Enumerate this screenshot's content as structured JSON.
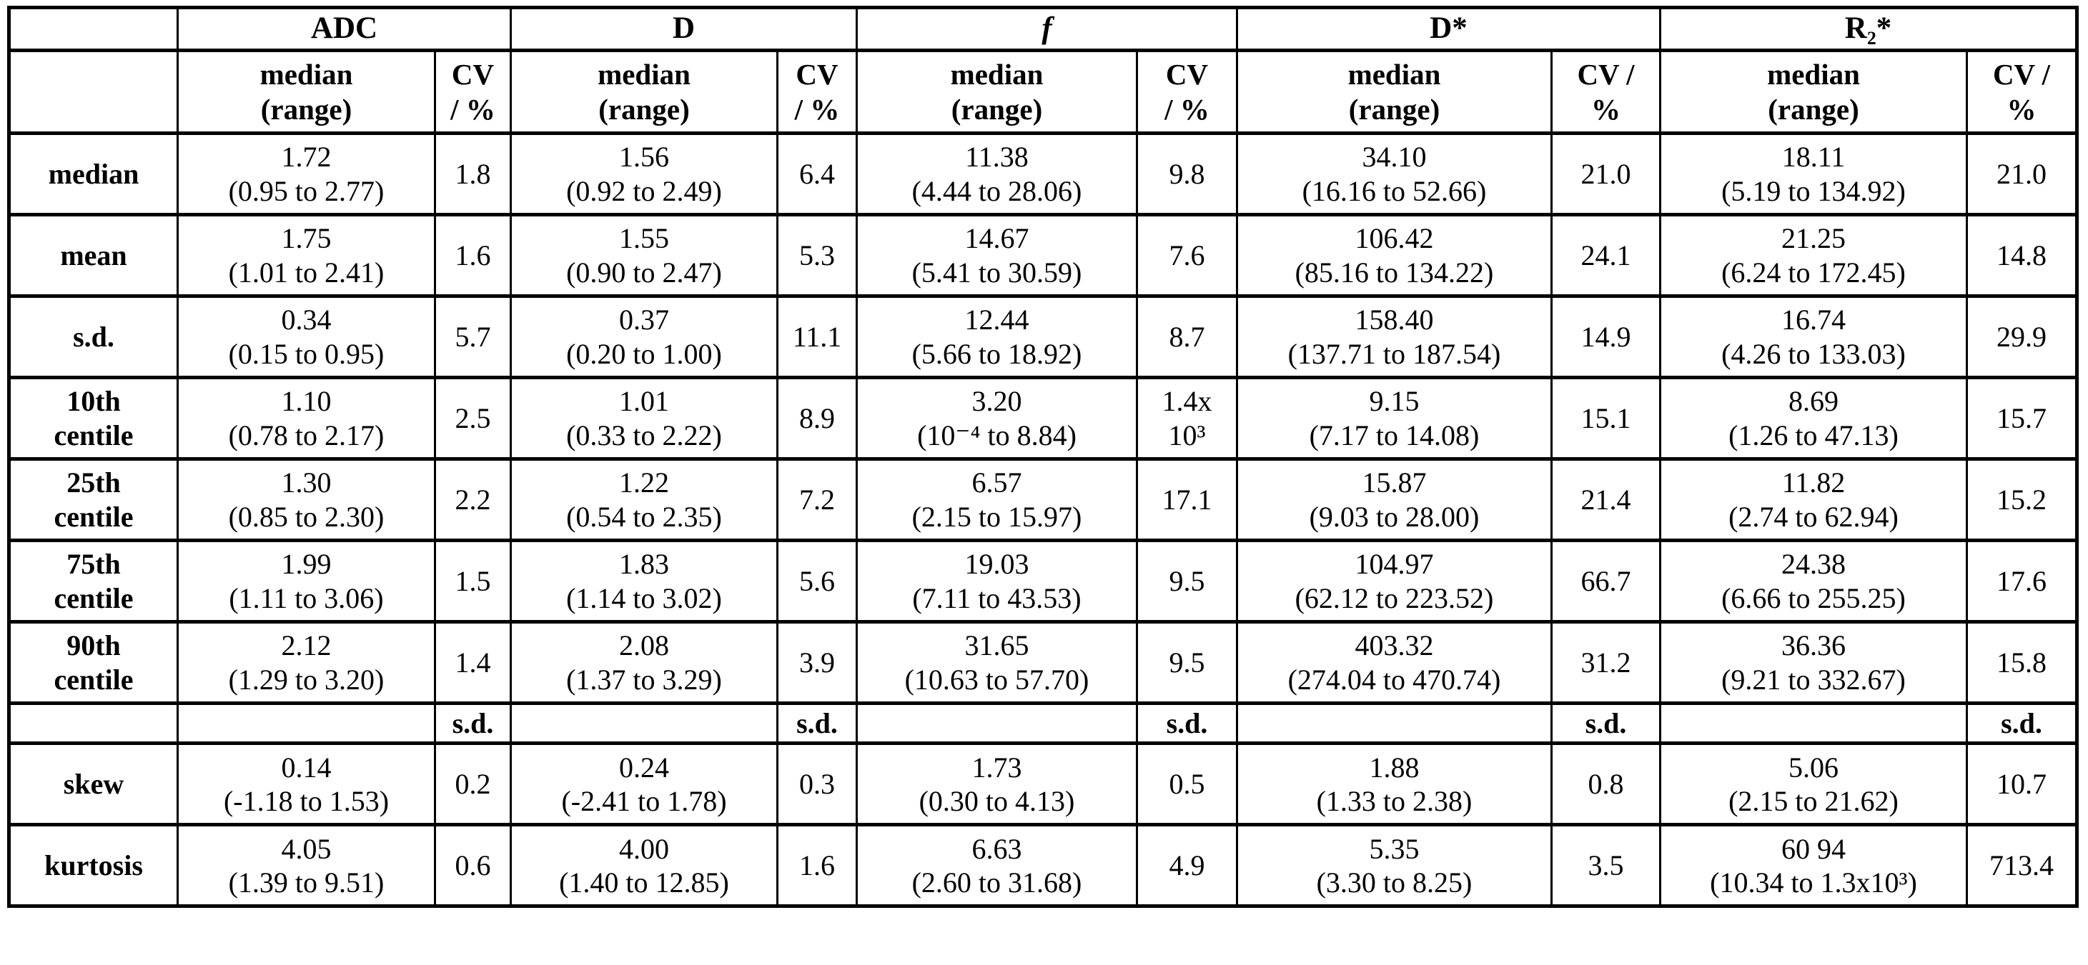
{
  "table": {
    "median_range_header": "median\n(range)",
    "groups": [
      {
        "name": "ADC",
        "cv": "CV\n/ %"
      },
      {
        "name": "D",
        "cv": "CV\n/ %"
      },
      {
        "name": "f",
        "cv": "CV\n/ %"
      },
      {
        "name": "D*",
        "cv": "CV /\n%"
      },
      {
        "name": "R₂*",
        "cv": "CV /\n%"
      }
    ],
    "rows": [
      {
        "label": "median",
        "type": "data",
        "cells": [
          "1.72\n(0.95 to 2.77)",
          "1.8",
          "1.56\n(0.92 to 2.49)",
          "6.4",
          "11.38\n(4.44 to 28.06)",
          "9.8",
          "34.10\n(16.16 to 52.66)",
          "21.0",
          "18.11\n(5.19 to 134.92)",
          "21.0"
        ]
      },
      {
        "label": "mean",
        "type": "data",
        "cells": [
          "1.75\n(1.01 to 2.41)",
          "1.6",
          "1.55\n(0.90 to 2.47)",
          "5.3",
          "14.67\n(5.41 to 30.59)",
          "7.6",
          "106.42\n(85.16 to 134.22)",
          "24.1",
          "21.25\n(6.24 to 172.45)",
          "14.8"
        ]
      },
      {
        "label": "s.d.",
        "type": "data",
        "cells": [
          "0.34\n(0.15 to 0.95)",
          "5.7",
          "0.37\n(0.20 to 1.00)",
          "11.1",
          "12.44\n(5.66 to 18.92)",
          "8.7",
          "158.40\n(137.71 to 187.54)",
          "14.9",
          "16.74\n(4.26 to 133.03)",
          "29.9"
        ]
      },
      {
        "label": "10th\ncentile",
        "type": "data",
        "cells": [
          "1.10\n(0.78 to 2.17)",
          "2.5",
          "1.01\n(0.33 to 2.22)",
          "8.9",
          "3.20\n(10⁻⁴ to 8.84)",
          "1.4x\n10³",
          "9.15\n(7.17 to 14.08)",
          "15.1",
          "8.69\n(1.26 to 47.13)",
          "15.7"
        ]
      },
      {
        "label": "25th\ncentile",
        "type": "data",
        "cells": [
          "1.30\n(0.85 to 2.30)",
          "2.2",
          "1.22\n(0.54 to 2.35)",
          "7.2",
          "6.57\n(2.15 to 15.97)",
          "17.1",
          "15.87\n(9.03 to 28.00)",
          "21.4",
          "11.82\n(2.74 to 62.94)",
          "15.2"
        ]
      },
      {
        "label": "75th\ncentile",
        "type": "data",
        "cells": [
          "1.99\n(1.11 to 3.06)",
          "1.5",
          "1.83\n(1.14 to 3.02)",
          "5.6",
          "19.03\n(7.11 to 43.53)",
          "9.5",
          "104.97\n(62.12 to 223.52)",
          "66.7",
          "24.38\n(6.66 to 255.25)",
          "17.6"
        ]
      },
      {
        "label": "90th\ncentile",
        "type": "data",
        "cells": [
          "2.12\n(1.29 to 3.20)",
          "1.4",
          "2.08\n(1.37 to 3.29)",
          "3.9",
          "31.65\n(10.63 to 57.70)",
          "9.5",
          "403.32\n(274.04 to 470.74)",
          "31.2",
          "36.36\n(9.21 to 332.67)",
          "15.8"
        ]
      },
      {
        "label": "",
        "type": "subheader",
        "cells": [
          "",
          "s.d.",
          "",
          "s.d.",
          "",
          "s.d.",
          "",
          "s.d.",
          "",
          "s.d."
        ]
      },
      {
        "label": "skew",
        "type": "data",
        "cells": [
          "0.14\n(-1.18 to 1.53)",
          "0.2",
          "0.24\n(-2.41 to 1.78)",
          "0.3",
          "1.73\n(0.30 to 4.13)",
          "0.5",
          "1.88\n(1.33 to 2.38)",
          "0.8",
          "5.06\n(2.15 to 21.62)",
          "10.7"
        ]
      },
      {
        "label": "kurtosis",
        "type": "data",
        "cells": [
          "4.05\n(1.39 to 9.51)",
          "0.6",
          "4.00\n(1.40 to 12.85)",
          "1.6",
          "6.63\n(2.60 to 31.68)",
          "4.9",
          "5.35\n(3.30 to 8.25)",
          "3.5",
          "60 94\n(10.34 to 1.3x10³)",
          "713.4"
        ]
      }
    ]
  }
}
